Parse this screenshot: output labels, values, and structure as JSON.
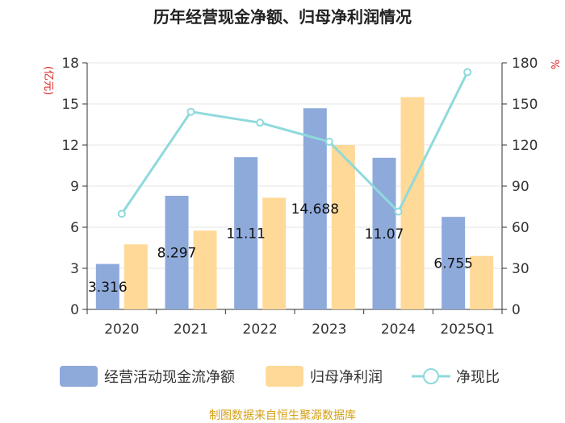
{
  "chart_data": {
    "type": "bar",
    "title": "历年经营现金净额、归母净利润情况",
    "categories": [
      "2020",
      "2021",
      "2022",
      "2023",
      "2024",
      "2025Q1"
    ],
    "series": [
      {
        "name": "经营活动现金流净额",
        "kind": "bar",
        "axis": "left",
        "color": "#8eaadb",
        "values": [
          3.316,
          8.297,
          11.11,
          14.688,
          11.07,
          6.755
        ],
        "labels": [
          "3.316",
          "8.297",
          "11.11",
          "14.688",
          "11.07",
          "6.755"
        ]
      },
      {
        "name": "归母净利润",
        "kind": "bar",
        "axis": "left",
        "color": "#ffd997",
        "values": [
          4.75,
          5.75,
          8.15,
          12.0,
          15.5,
          3.9
        ]
      },
      {
        "name": "净现比",
        "kind": "line",
        "axis": "right",
        "color": "#8fd9dc",
        "values": [
          69.8,
          144.3,
          136.3,
          122.4,
          71.4,
          173.2
        ]
      }
    ],
    "y_left": {
      "unit": "(亿元)",
      "ylim": [
        0,
        18
      ],
      "ticks": [
        0,
        3,
        6,
        9,
        12,
        15,
        18
      ]
    },
    "y_right": {
      "unit": "%",
      "ylim": [
        0,
        180
      ],
      "ticks": [
        0,
        30,
        60,
        90,
        120,
        150,
        180
      ]
    },
    "grid": true,
    "legend_position": "bottom",
    "source": "制图数据来自恒生聚源数据库"
  }
}
